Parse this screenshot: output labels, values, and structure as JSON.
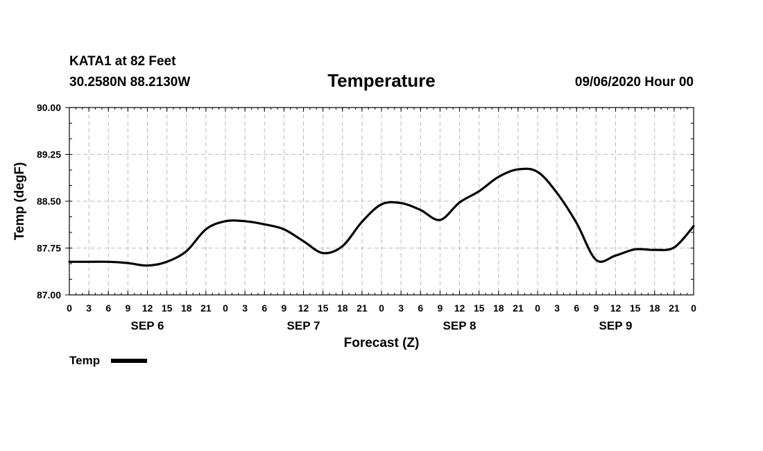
{
  "header": {
    "station": "KATA1 at 82 Feet",
    "coords": "30.2580N 88.2130W",
    "title": "Temperature",
    "datetime": "09/06/2020 Hour 00"
  },
  "chart_data": {
    "type": "line",
    "title": "Temperature",
    "xlabel": "Forecast (Z)",
    "ylabel": "Temp (degF)",
    "ylim": [
      87.0,
      90.0
    ],
    "yticks": [
      87.0,
      87.75,
      88.5,
      89.25,
      90.0
    ],
    "ytick_labels": [
      "87.00",
      "87.75",
      "88.50",
      "89.25",
      "90.00"
    ],
    "xlim": [
      0,
      96
    ],
    "x_tick_labels": [
      "0",
      "3",
      "6",
      "9",
      "12",
      "15",
      "18",
      "21",
      "0",
      "3",
      "6",
      "9",
      "12",
      "15",
      "18",
      "21",
      "0",
      "3",
      "6",
      "9",
      "12",
      "15",
      "18",
      "21",
      "0",
      "3",
      "6",
      "9",
      "12",
      "15",
      "18",
      "21",
      "0"
    ],
    "day_labels": [
      {
        "label": "SEP 6",
        "hour": 12
      },
      {
        "label": "SEP 7",
        "hour": 36
      },
      {
        "label": "SEP 8",
        "hour": 60
      },
      {
        "label": "SEP 9",
        "hour": 84
      }
    ],
    "grid": true,
    "legend": [
      {
        "name": "Temp",
        "color": "#000000"
      }
    ],
    "series": [
      {
        "name": "Temp",
        "x": [
          0,
          3,
          6,
          9,
          12,
          15,
          18,
          21,
          24,
          27,
          30,
          33,
          36,
          39,
          42,
          45,
          48,
          51,
          54,
          57,
          60,
          63,
          66,
          69,
          72,
          75,
          78,
          81,
          84,
          87,
          90,
          93,
          96
        ],
        "values": [
          87.53,
          87.53,
          87.53,
          87.51,
          87.47,
          87.53,
          87.7,
          88.05,
          88.18,
          88.18,
          88.13,
          88.05,
          87.86,
          87.67,
          87.78,
          88.17,
          88.45,
          88.47,
          88.36,
          88.2,
          88.48,
          88.66,
          88.89,
          89.01,
          88.97,
          88.63,
          88.15,
          87.56,
          87.63,
          87.73,
          87.72,
          87.76,
          88.1
        ]
      }
    ]
  }
}
